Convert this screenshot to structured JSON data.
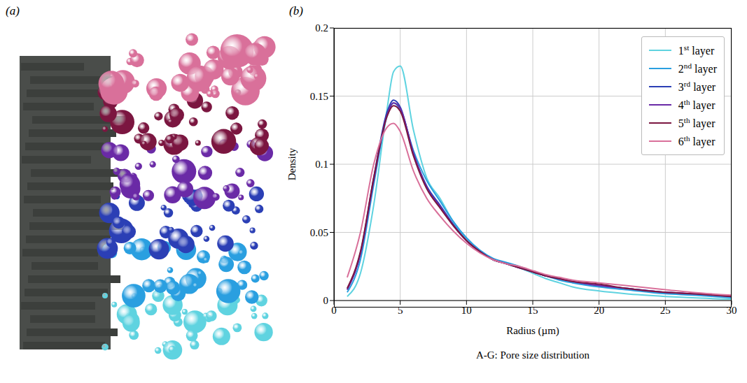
{
  "panel_labels": [
    "(a)",
    "(b)"
  ],
  "caption": "A-G: Pore size distribution",
  "chart_data": {
    "type": "line",
    "xlabel": "Radius (µm)",
    "ylabel": "Density",
    "x": [
      1,
      2,
      3,
      4,
      4.5,
      5,
      6,
      7,
      8,
      9,
      10,
      11,
      12,
      13,
      14,
      15,
      16,
      17,
      18,
      20,
      22,
      25,
      27,
      30
    ],
    "series": [
      {
        "name": "1st layer",
        "color": "#5fd3e0",
        "values": [
          0.003,
          0.02,
          0.07,
          0.14,
          0.168,
          0.172,
          0.125,
          0.09,
          0.075,
          0.058,
          0.045,
          0.036,
          0.03,
          0.027,
          0.024,
          0.02,
          0.016,
          0.013,
          0.01,
          0.007,
          0.005,
          0.003,
          0.002,
          0.001
        ]
      },
      {
        "name": "2nd layer",
        "color": "#2a9fe0",
        "values": [
          0.006,
          0.03,
          0.085,
          0.135,
          0.145,
          0.14,
          0.11,
          0.088,
          0.073,
          0.058,
          0.046,
          0.037,
          0.031,
          0.028,
          0.025,
          0.021,
          0.018,
          0.015,
          0.013,
          0.01,
          0.008,
          0.005,
          0.004,
          0.002
        ]
      },
      {
        "name": "3rd layer",
        "color": "#2b3fb5",
        "values": [
          0.008,
          0.035,
          0.09,
          0.138,
          0.147,
          0.142,
          0.108,
          0.084,
          0.07,
          0.056,
          0.044,
          0.036,
          0.03,
          0.027,
          0.024,
          0.021,
          0.018,
          0.016,
          0.014,
          0.011,
          0.009,
          0.006,
          0.005,
          0.003
        ]
      },
      {
        "name": "4th layer",
        "color": "#6a2aa6",
        "values": [
          0.008,
          0.034,
          0.088,
          0.136,
          0.145,
          0.141,
          0.108,
          0.083,
          0.069,
          0.055,
          0.044,
          0.036,
          0.03,
          0.027,
          0.024,
          0.021,
          0.018,
          0.016,
          0.014,
          0.011,
          0.009,
          0.006,
          0.005,
          0.003
        ]
      },
      {
        "name": "5th layer",
        "color": "#7b1640",
        "values": [
          0.009,
          0.036,
          0.09,
          0.135,
          0.143,
          0.139,
          0.106,
          0.082,
          0.068,
          0.055,
          0.044,
          0.036,
          0.03,
          0.027,
          0.024,
          0.021,
          0.018,
          0.016,
          0.014,
          0.012,
          0.009,
          0.006,
          0.005,
          0.003
        ]
      },
      {
        "name": "6th layer",
        "color": "#d9709a",
        "values": [
          0.017,
          0.05,
          0.1,
          0.127,
          0.13,
          0.124,
          0.095,
          0.075,
          0.062,
          0.051,
          0.042,
          0.035,
          0.03,
          0.027,
          0.025,
          0.022,
          0.019,
          0.017,
          0.015,
          0.013,
          0.011,
          0.008,
          0.006,
          0.004
        ]
      }
    ],
    "xlim": [
      0,
      30
    ],
    "xticks": [
      0,
      5,
      10,
      15,
      20,
      25,
      30
    ],
    "ylim": [
      0,
      0.2
    ],
    "yticks": [
      0,
      0.05,
      0.1,
      0.15,
      0.2
    ],
    "grid": true,
    "legend": "upper right"
  }
}
